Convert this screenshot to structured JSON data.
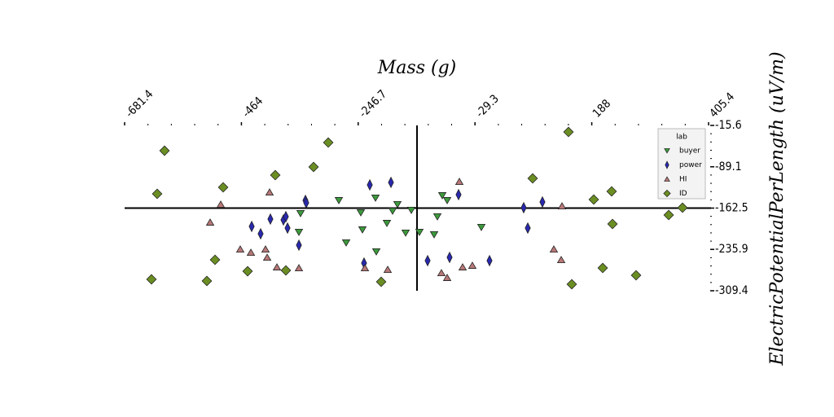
{
  "chart_data": {
    "type": "scatter",
    "x_label": "Mass (g)",
    "y_label": "ElectricPotentialPerLength (uV/m)",
    "xlim": [
      -681.4,
      405.4
    ],
    "xticks": [
      -681.4,
      -464.0,
      -246.7,
      -29.3,
      188.0,
      405.4
    ],
    "ylim": [
      -309.4,
      -15.6
    ],
    "yticks": [
      -15.6,
      -89.1,
      -162.5,
      -235.9,
      -309.4
    ],
    "hline": -162.5,
    "vline": -137.2,
    "legend_title": "lab",
    "legend_position": "upper right",
    "series": [
      {
        "name": "buyer",
        "color": "#3c9a3c",
        "marker": "triangle-down",
        "x": [
          -282.7,
          -241.8,
          -238.8,
          -214.5,
          -213.0,
          -193.3,
          -182.7,
          -173.6,
          -158.4,
          -147.8,
          -132.7,
          -105.4,
          -99.3,
          -90.2,
          -81.1,
          -17.5,
          -269.1,
          -354.0,
          -357.0
        ],
        "values": [
          -148.8,
          -170.5,
          -200.9,
          -144.4,
          -239.9,
          -189.3,
          -167.6,
          -156.0,
          -206.6,
          -166.1,
          -205.2,
          -209.5,
          -177.7,
          -140.1,
          -148.8,
          -196.5,
          -224.0,
          -171.9,
          -205.2
        ]
      },
      {
        "name": "power",
        "color": "#2828b0",
        "marker": "thin-diamond",
        "x": [
          -444.9,
          -428.3,
          -410.1,
          -385.8,
          -381.3,
          -378.2,
          -357.0,
          -344.9,
          -343.4,
          -235.8,
          -225.1,
          -185.7,
          -117.5,
          -76.6,
          -59.9,
          -2.3,
          61.3,
          68.9,
          96.2
        ],
        "values": [
          -195.1,
          -208.1,
          -182.0,
          -183.5,
          -177.7,
          -198.0,
          -228.4,
          -148.8,
          -153.1,
          -260.2,
          -121.3,
          -116.9,
          -255.9,
          -250.1,
          -138.6,
          -255.9,
          -161.8,
          -198.0,
          -151.6
        ]
      },
      {
        "name": "HI",
        "color": "#b87878",
        "marker": "triangle-up",
        "x": [
          -522.2,
          -502.5,
          -466.2,
          -446.4,
          -419.2,
          -416.1,
          -411.6,
          -397.9,
          -357.0,
          -234.2,
          -191.8,
          -91.8,
          -81.1,
          -58.4,
          -52.3,
          -34.2,
          117.4,
          131.1,
          132.6
        ],
        "values": [
          -187.8,
          -156.0,
          -235.6,
          -241.4,
          -235.6,
          -250.1,
          -134.3,
          -267.4,
          -268.9,
          -268.9,
          -271.8,
          -277.6,
          -286.2,
          -115.5,
          -267.4,
          -264.5,
          -235.6,
          -254.4,
          -158.9
        ]
      },
      {
        "name": "ID",
        "color": "#6b8e23",
        "marker": "diamond",
        "x": [
          -631.4,
          -620.8,
          -607.1,
          -528.3,
          -513.1,
          -498.0,
          -452.5,
          -401.0,
          -381.3,
          -329.7,
          -302.4,
          -203.9,
          78.0,
          144.7,
          150.8,
          191.7,
          208.4,
          225.0,
          226.6,
          270.5,
          331.2,
          356.9
        ],
        "values": [
          -289.1,
          -137.2,
          -60.5,
          -292.0,
          -254.4,
          -125.6,
          -274.7,
          -103.9,
          -273.2,
          -89.4,
          -46.0,
          -293.5,
          -109.7,
          -27.2,
          -297.8,
          -147.3,
          -268.9,
          -132.8,
          -190.7,
          -281.9,
          -174.8,
          -161.8
        ]
      }
    ]
  }
}
